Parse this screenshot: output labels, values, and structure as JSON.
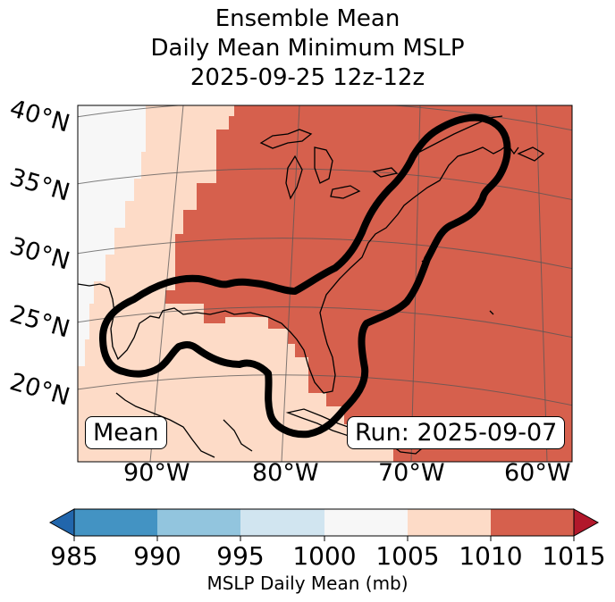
{
  "title": {
    "line1": "Ensemble Mean",
    "line2": "Daily Mean Minimum MSLP",
    "line3": "2025-09-25 12z-12z"
  },
  "map": {
    "lat_labels": [
      "40°N",
      "35°N",
      "30°N",
      "25°N",
      "20°N"
    ],
    "lon_labels": [
      "90°W",
      "80°W",
      "70°W",
      "60°W"
    ],
    "mean_label": "Mean",
    "run_label": "Run: 2025-09-07",
    "fill_colors": {
      "bin_1000_1005": "#f7f7f7",
      "bin_1005_1010": "#fddbc7",
      "bin_1010_1015": "#d6604d"
    },
    "contour_color": "#000000"
  },
  "colorbar": {
    "ticks": [
      "985",
      "990",
      "995",
      "1000",
      "1005",
      "1010",
      "1015"
    ],
    "label": "MSLP Daily Mean (mb)",
    "bins": [
      {
        "range": "<985",
        "color": "#2166ac"
      },
      {
        "range": "985-990",
        "color": "#4393c3"
      },
      {
        "range": "990-995",
        "color": "#92c5de"
      },
      {
        "range": "995-1000",
        "color": "#d1e5f0"
      },
      {
        "range": "1000-1005",
        "color": "#f7f7f7"
      },
      {
        "range": "1005-1010",
        "color": "#fddbc7"
      },
      {
        "range": "1010-1015",
        "color": "#d6604d"
      },
      {
        "range": ">1015",
        "color": "#b2182b"
      }
    ]
  }
}
